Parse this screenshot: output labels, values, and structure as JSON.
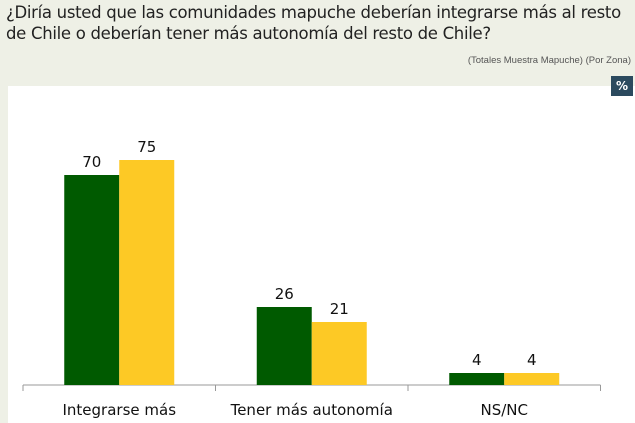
{
  "header": {
    "title": "¿Diría usted que las comunidades mapuche deberían integrarse más al resto de Chile o deberían tener más autonomía del resto de Chile?",
    "subtitle": "(Totales Muestra Mapuche) (Por Zona)",
    "unit_badge": "%"
  },
  "chart_data": {
    "type": "bar",
    "categories": [
      "Integrarse más",
      "Tener más autonomía",
      "NS/NC"
    ],
    "series": [
      {
        "color": "#005a00",
        "values": [
          70,
          26,
          4
        ]
      },
      {
        "color": "#fdc925",
        "values": [
          75,
          21,
          4
        ]
      }
    ],
    "ylim": [
      0,
      80
    ],
    "grid": false,
    "legend": "none"
  }
}
